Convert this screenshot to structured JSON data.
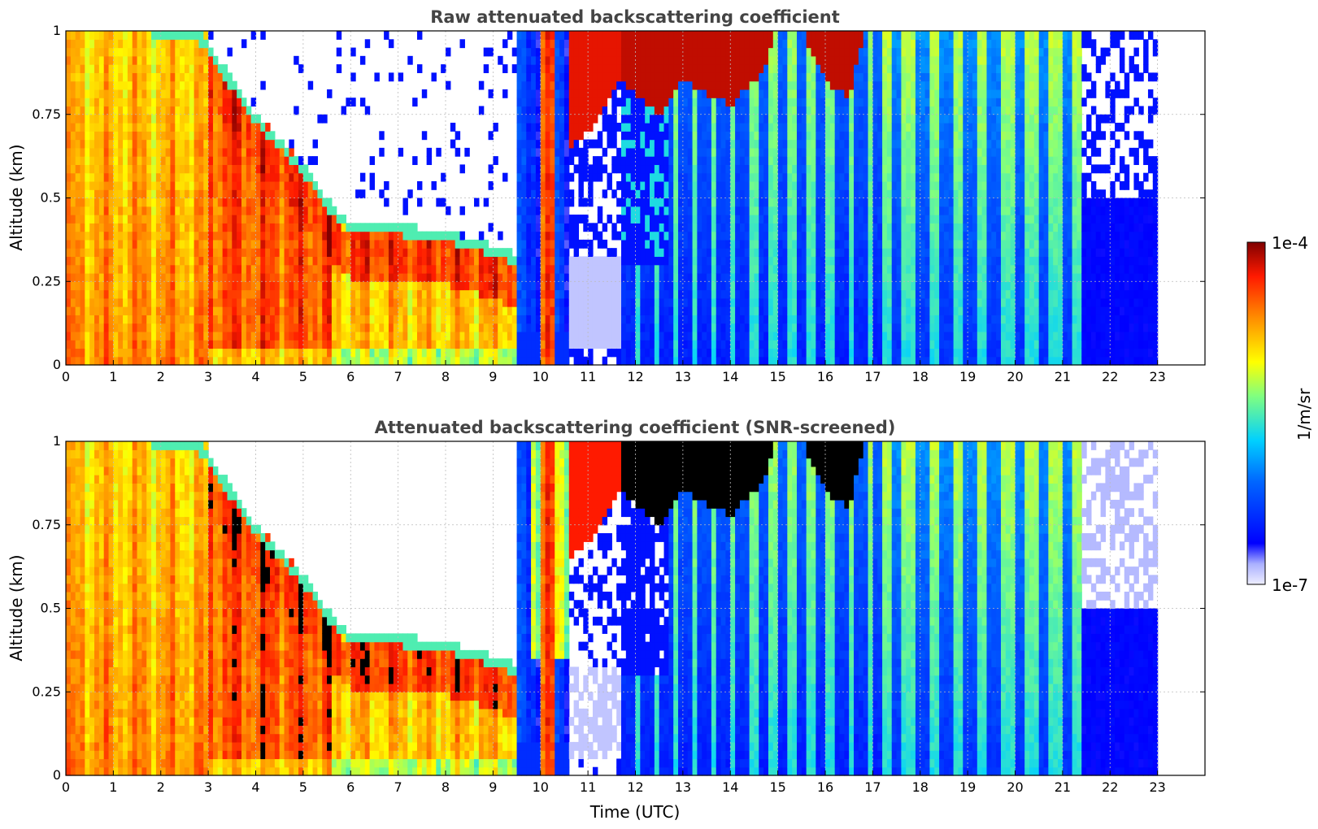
{
  "chart_data": [
    {
      "type": "heatmap",
      "title": "Raw attenuated backscattering coefficient",
      "xlabel": "",
      "ylabel": "Altitude (km)",
      "xlim": [
        0,
        24
      ],
      "ylim": [
        0,
        1
      ],
      "x_ticks": [
        "0",
        "1",
        "2",
        "3",
        "4",
        "5",
        "6",
        "7",
        "8",
        "9",
        "10",
        "11",
        "12",
        "13",
        "14",
        "15",
        "16",
        "17",
        "18",
        "19",
        "20",
        "21",
        "22",
        "23"
      ],
      "y_ticks": [
        "0",
        "0.25",
        "0.5",
        "0.75",
        "1"
      ],
      "grid": true,
      "data_extent_hours": 23,
      "colormap": "jet",
      "features": {
        "aerosol_layer_top_km": [
          [
            0,
            1.0
          ],
          [
            3,
            0.95
          ],
          [
            4,
            0.7
          ],
          [
            5,
            0.5
          ],
          [
            6,
            0.42
          ],
          [
            7,
            0.4
          ],
          [
            8,
            0.38
          ],
          [
            9,
            0.33
          ]
        ],
        "cloud_base_km": [
          [
            11.5,
            0.85
          ],
          [
            12.5,
            0.78
          ],
          [
            14,
            0.8
          ],
          [
            16,
            0.8
          ]
        ]
      }
    },
    {
      "type": "heatmap",
      "title": "Attenuated backscattering coefficient (SNR-screened)",
      "xlabel": "Time (UTC)",
      "ylabel": "Altitude (km)",
      "xlim": [
        0,
        24
      ],
      "ylim": [
        0,
        1
      ],
      "x_ticks": [
        "0",
        "1",
        "2",
        "3",
        "4",
        "5",
        "6",
        "7",
        "8",
        "9",
        "10",
        "11",
        "12",
        "13",
        "14",
        "15",
        "16",
        "17",
        "18",
        "19",
        "20",
        "21",
        "22",
        "23"
      ],
      "y_ticks": [
        "0",
        "0.25",
        "0.5",
        "0.75",
        "1"
      ],
      "grid": true,
      "data_extent_hours": 23,
      "colormap": "jet",
      "saturated_color": "#000000"
    }
  ],
  "colorbar": {
    "max_label": "1e-4",
    "min_label": "1e-7",
    "unit_label": "1/m/sr",
    "stops": [
      "#eeeeff",
      "#0000ff",
      "#00c8ff",
      "#aaff55",
      "#ffee00",
      "#ff8800",
      "#ff2200",
      "#800000"
    ]
  }
}
